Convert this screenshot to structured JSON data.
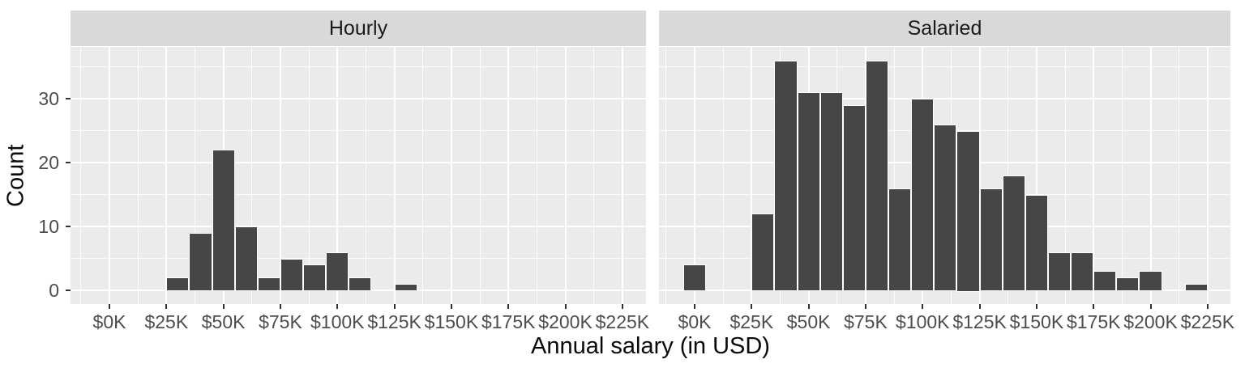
{
  "chart_data": {
    "type": "bar",
    "subtype": "faceted-histogram",
    "title": "",
    "xlabel": "Annual salary (in USD)",
    "ylabel": "Count",
    "binwidth_k": 10,
    "x_tick_values_k": [
      0,
      25,
      50,
      75,
      100,
      125,
      150,
      175,
      200,
      225
    ],
    "x_tick_labels": [
      "$0K",
      "$25K",
      "$50K",
      "$75K",
      "$100K",
      "$125K",
      "$150K",
      "$175K",
      "$200K",
      "$225K"
    ],
    "y_tick_values": [
      0,
      10,
      20,
      30
    ],
    "y_tick_labels": [
      "0",
      "10",
      "20",
      "30"
    ],
    "y_minor_tick_values": [
      5,
      15,
      25,
      35
    ],
    "ylim": [
      0,
      37.8
    ],
    "x_range_k": [
      -17.5,
      247.5
    ],
    "grid": {
      "major": true,
      "minor": true
    },
    "legend_position": "none",
    "facets": [
      {
        "label": "Hourly",
        "bin_centers_k": [
          30,
          40,
          50,
          60,
          70,
          80,
          90,
          100,
          110,
          120,
          130
        ],
        "counts": [
          2,
          9,
          22,
          10,
          2,
          5,
          4,
          6,
          2,
          0,
          1
        ]
      },
      {
        "label": "Salaried",
        "bin_centers_k": [
          0,
          10,
          20,
          30,
          40,
          50,
          60,
          70,
          80,
          90,
          100,
          110,
          120,
          130,
          140,
          150,
          160,
          170,
          180,
          190,
          200,
          210,
          220
        ],
        "counts": [
          4,
          0,
          0,
          12,
          36,
          31,
          31,
          29,
          36,
          16,
          30,
          26,
          25,
          16,
          18,
          15,
          6,
          6,
          3,
          2,
          3,
          0,
          1
        ]
      }
    ]
  },
  "colors": {
    "background": "#ffffff",
    "panel_bg": "#ebebeb",
    "strip_bg": "#d9d9d9",
    "strip_text": "#1a1a1a",
    "bar_fill": "#464646",
    "bar_stroke": "#ffffff",
    "gridline": "#ffffff",
    "tick_label": "#4d4d4d",
    "tick_mark": "#333333",
    "axis_title": "#0a0a0a"
  }
}
